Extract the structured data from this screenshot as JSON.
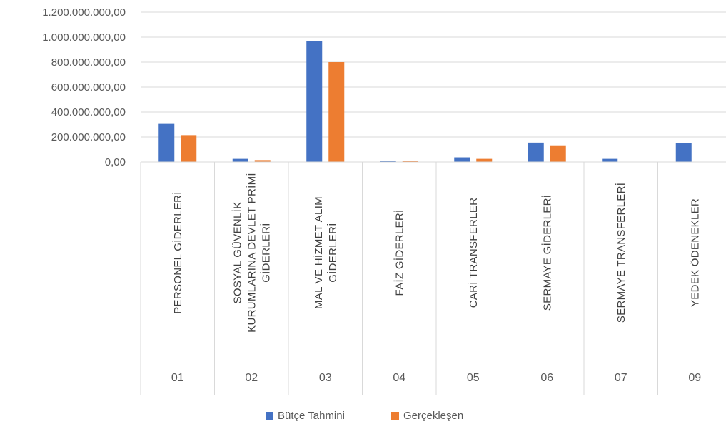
{
  "chart_data": {
    "type": "bar",
    "categories": [
      {
        "code": "01",
        "name": "PERSONEL GİDERLERİ"
      },
      {
        "code": "02",
        "name": "SOSYAL GÜVENLİK KURUMLARINA DEVLET PRİMİ GİDERLERİ"
      },
      {
        "code": "03",
        "name": "MAL VE HİZMET ALIM GİDERLERİ"
      },
      {
        "code": "04",
        "name": "FAİZ GİDERLERİ"
      },
      {
        "code": "05",
        "name": "CARİ TRANSFERLER"
      },
      {
        "code": "06",
        "name": "SERMAYE GİDERLERİ"
      },
      {
        "code": "07",
        "name": "SERMAYE TRANSFERLERİ"
      },
      {
        "code": "09",
        "name": "YEDEK ÖDENEKLER"
      }
    ],
    "series": [
      {
        "name": "Bütçe Tahmini",
        "color": "#4472c4",
        "values": [
          305000000,
          25000000,
          968000000,
          8000000,
          37000000,
          155000000,
          25000000,
          152000000
        ]
      },
      {
        "name": "Gerçekleşen",
        "color": "#ed7d31",
        "values": [
          215000000,
          15000000,
          800000000,
          10000000,
          25000000,
          133000000,
          0,
          0
        ]
      }
    ],
    "ylim": [
      0,
      1200000000
    ],
    "yticks": [
      "0,00",
      "200.000.000,00",
      "400.000.000,00",
      "600.000.000,00",
      "800.000.000,00",
      "1.000.000.000,00",
      "1.200.000.000,00"
    ],
    "ytick_values": [
      0,
      200000000,
      400000000,
      600000000,
      800000000,
      1000000000,
      1200000000
    ],
    "grid": "horizontal",
    "legend": "bottom"
  }
}
